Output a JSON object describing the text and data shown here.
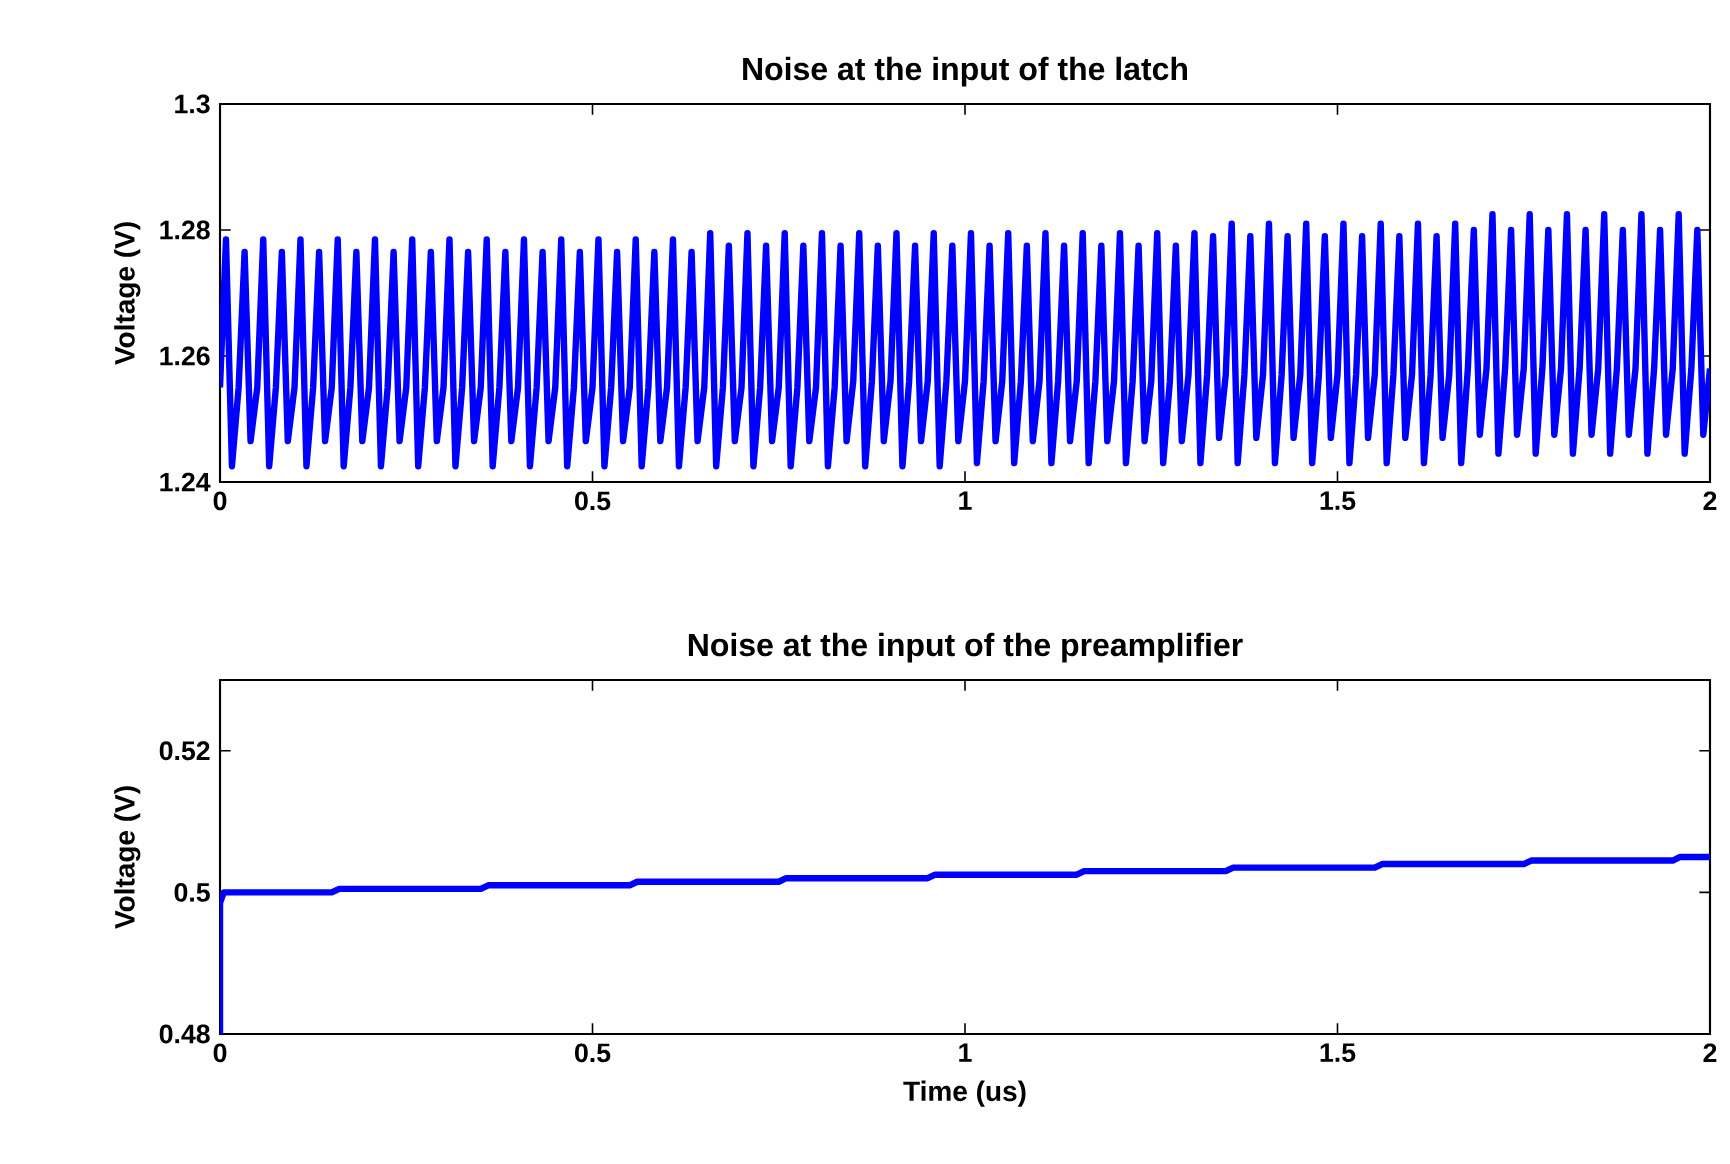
{
  "chart_data": [
    {
      "type": "line",
      "title": "Noise at the input of the latch",
      "ylabel": "Voltage (V)",
      "xlim": [
        0,
        2
      ],
      "ylim": [
        1.24,
        1.3
      ],
      "xticks": [
        0,
        0.5,
        1,
        1.5,
        2
      ],
      "yticks": [
        1.24,
        1.26,
        1.28,
        1.3
      ],
      "x": [
        0,
        0.008,
        0.016,
        0.025,
        0.033,
        0.041,
        0.05,
        0.058,
        0.066,
        0.075,
        0.083,
        0.091,
        0.1,
        0.108,
        0.116,
        0.125,
        0.133,
        0.141,
        0.15,
        0.158,
        0.166,
        0.175,
        0.183,
        0.191,
        0.2,
        0.208,
        0.216,
        0.225,
        0.233,
        0.241,
        0.25,
        0.258,
        0.266,
        0.275,
        0.283,
        0.291,
        0.3,
        0.308,
        0.316,
        0.325,
        0.333,
        0.341,
        0.35,
        0.358,
        0.366,
        0.375,
        0.383,
        0.391,
        0.4,
        0.408,
        0.416,
        0.425,
        0.433,
        0.441,
        0.45,
        0.458,
        0.466,
        0.475,
        0.483,
        0.491,
        0.5,
        0.508,
        0.516,
        0.525,
        0.533,
        0.541,
        0.55,
        0.558,
        0.566,
        0.575,
        0.583,
        0.591,
        0.6,
        0.608,
        0.616,
        0.625,
        0.633,
        0.641,
        0.65,
        0.658,
        0.666,
        0.675,
        0.683,
        0.691,
        0.7,
        0.708,
        0.716,
        0.725,
        0.733,
        0.741,
        0.75,
        0.758,
        0.766,
        0.775,
        0.783,
        0.791,
        0.8,
        0.808,
        0.816,
        0.825,
        0.833,
        0.841,
        0.85,
        0.858,
        0.866,
        0.875,
        0.883,
        0.891,
        0.9,
        0.908,
        0.916,
        0.925,
        0.933,
        0.941,
        0.95,
        0.958,
        0.966,
        0.975,
        0.983,
        0.991,
        1,
        1.008,
        1.016,
        1.025,
        1.033,
        1.041,
        1.05,
        1.058,
        1.066,
        1.075,
        1.083,
        1.091,
        1.1,
        1.108,
        1.116,
        1.125,
        1.133,
        1.141,
        1.15,
        1.158,
        1.166,
        1.175,
        1.183,
        1.191,
        1.2,
        1.208,
        1.216,
        1.225,
        1.233,
        1.241,
        1.25,
        1.258,
        1.266,
        1.275,
        1.283,
        1.291,
        1.3,
        1.308,
        1.316,
        1.325,
        1.333,
        1.341,
        1.35,
        1.358,
        1.366,
        1.375,
        1.383,
        1.391,
        1.4,
        1.408,
        1.416,
        1.425,
        1.433,
        1.441,
        1.45,
        1.458,
        1.466,
        1.475,
        1.483,
        1.491,
        1.5,
        1.508,
        1.516,
        1.525,
        1.533,
        1.541,
        1.55,
        1.558,
        1.566,
        1.575,
        1.583,
        1.591,
        1.6,
        1.608,
        1.616,
        1.625,
        1.633,
        1.641,
        1.65,
        1.658,
        1.666,
        1.675,
        1.683,
        1.691,
        1.7,
        1.708,
        1.716,
        1.725,
        1.733,
        1.741,
        1.75,
        1.758,
        1.766,
        1.775,
        1.783,
        1.791,
        1.8,
        1.808,
        1.816,
        1.825,
        1.833,
        1.841,
        1.85,
        1.858,
        1.866,
        1.875,
        1.883,
        1.891,
        1.9,
        1.908,
        1.916,
        1.925,
        1.933,
        1.941,
        1.95,
        1.958,
        1.966,
        1.975,
        1.983,
        1.991,
        2
      ],
      "series": [
        {
          "color": "#0000ff",
          "values": [
            1.255,
            1.2785,
            1.2425,
            1.255,
            1.2765,
            1.2465,
            1.255,
            1.2785,
            1.2425,
            1.255,
            1.2765,
            1.2465,
            1.255,
            1.2785,
            1.2425,
            1.255,
            1.2765,
            1.2465,
            1.255,
            1.2785,
            1.2425,
            1.255,
            1.2765,
            1.2465,
            1.255,
            1.2785,
            1.2425,
            1.255,
            1.2765,
            1.2465,
            1.255,
            1.2785,
            1.2425,
            1.255,
            1.2765,
            1.2465,
            1.255,
            1.2785,
            1.2425,
            1.255,
            1.2765,
            1.2465,
            1.255,
            1.2785,
            1.2425,
            1.255,
            1.2765,
            1.2465,
            1.255,
            1.2785,
            1.2425,
            1.255,
            1.2765,
            1.2465,
            1.255,
            1.2785,
            1.2425,
            1.255,
            1.2765,
            1.2465,
            1.255,
            1.2785,
            1.2425,
            1.255,
            1.2765,
            1.2465,
            1.255,
            1.2785,
            1.2425,
            1.255,
            1.2765,
            1.2465,
            1.255,
            1.2785,
            1.2425,
            1.255,
            1.2765,
            1.2465,
            1.255,
            1.2795,
            1.2425,
            1.255,
            1.2775,
            1.2465,
            1.255,
            1.2795,
            1.2425,
            1.255,
            1.2775,
            1.2465,
            1.255,
            1.2795,
            1.2425,
            1.255,
            1.2775,
            1.2465,
            1.255,
            1.2795,
            1.2425,
            1.255,
            1.2775,
            1.2465,
            1.256,
            1.2795,
            1.2425,
            1.256,
            1.2775,
            1.2465,
            1.256,
            1.2795,
            1.2425,
            1.256,
            1.2775,
            1.2465,
            1.256,
            1.2795,
            1.2425,
            1.256,
            1.2775,
            1.2465,
            1.256,
            1.2795,
            1.243,
            1.256,
            1.2775,
            1.2465,
            1.256,
            1.2795,
            1.243,
            1.256,
            1.2775,
            1.2465,
            1.256,
            1.2795,
            1.243,
            1.256,
            1.2775,
            1.2465,
            1.256,
            1.2795,
            1.243,
            1.256,
            1.2775,
            1.2465,
            1.256,
            1.2795,
            1.243,
            1.256,
            1.2775,
            1.2465,
            1.256,
            1.2795,
            1.243,
            1.256,
            1.2775,
            1.2465,
            1.257,
            1.2795,
            1.243,
            1.257,
            1.279,
            1.247,
            1.257,
            1.281,
            1.243,
            1.257,
            1.279,
            1.247,
            1.257,
            1.281,
            1.243,
            1.257,
            1.279,
            1.247,
            1.257,
            1.281,
            1.243,
            1.257,
            1.279,
            1.247,
            1.257,
            1.281,
            1.243,
            1.257,
            1.279,
            1.247,
            1.257,
            1.281,
            1.243,
            1.257,
            1.279,
            1.247,
            1.257,
            1.281,
            1.243,
            1.257,
            1.279,
            1.247,
            1.257,
            1.281,
            1.243,
            1.258,
            1.28,
            1.2475,
            1.258,
            1.2825,
            1.2445,
            1.258,
            1.28,
            1.2475,
            1.258,
            1.2825,
            1.2445,
            1.258,
            1.28,
            1.2475,
            1.258,
            1.2825,
            1.2445,
            1.258,
            1.28,
            1.2475,
            1.258,
            1.2825,
            1.2445,
            1.258,
            1.28,
            1.2475,
            1.258,
            1.2825,
            1.2445,
            1.258,
            1.28,
            1.2475,
            1.258,
            1.2825,
            1.2445,
            1.258,
            1.28,
            1.2475,
            1.258
          ]
        }
      ]
    },
    {
      "type": "line",
      "title": "Noise at the input of the preamplifier",
      "xlabel": "Time (us)",
      "ylabel": "Voltage (V)",
      "xlim": [
        0,
        2
      ],
      "ylim": [
        0.48,
        0.53
      ],
      "xticks": [
        0,
        0.5,
        1,
        1.5,
        2
      ],
      "yticks": [
        0.48,
        0.5,
        0.52
      ],
      "x": [
        0,
        0,
        0.005,
        0.15,
        0.16,
        0.35,
        0.36,
        0.55,
        0.56,
        0.75,
        0.76,
        0.95,
        0.96,
        1.15,
        1.16,
        1.35,
        1.36,
        1.55,
        1.56,
        1.75,
        1.76,
        1.95,
        1.96,
        2
      ],
      "series": [
        {
          "color": "#0000ff",
          "values": [
            0.48,
            0.4985,
            0.5,
            0.5,
            0.5005,
            0.5005,
            0.501,
            0.501,
            0.5015,
            0.5015,
            0.502,
            0.502,
            0.5025,
            0.5025,
            0.503,
            0.503,
            0.5035,
            0.5035,
            0.504,
            0.504,
            0.5045,
            0.5045,
            0.505,
            0.505
          ]
        }
      ]
    }
  ]
}
